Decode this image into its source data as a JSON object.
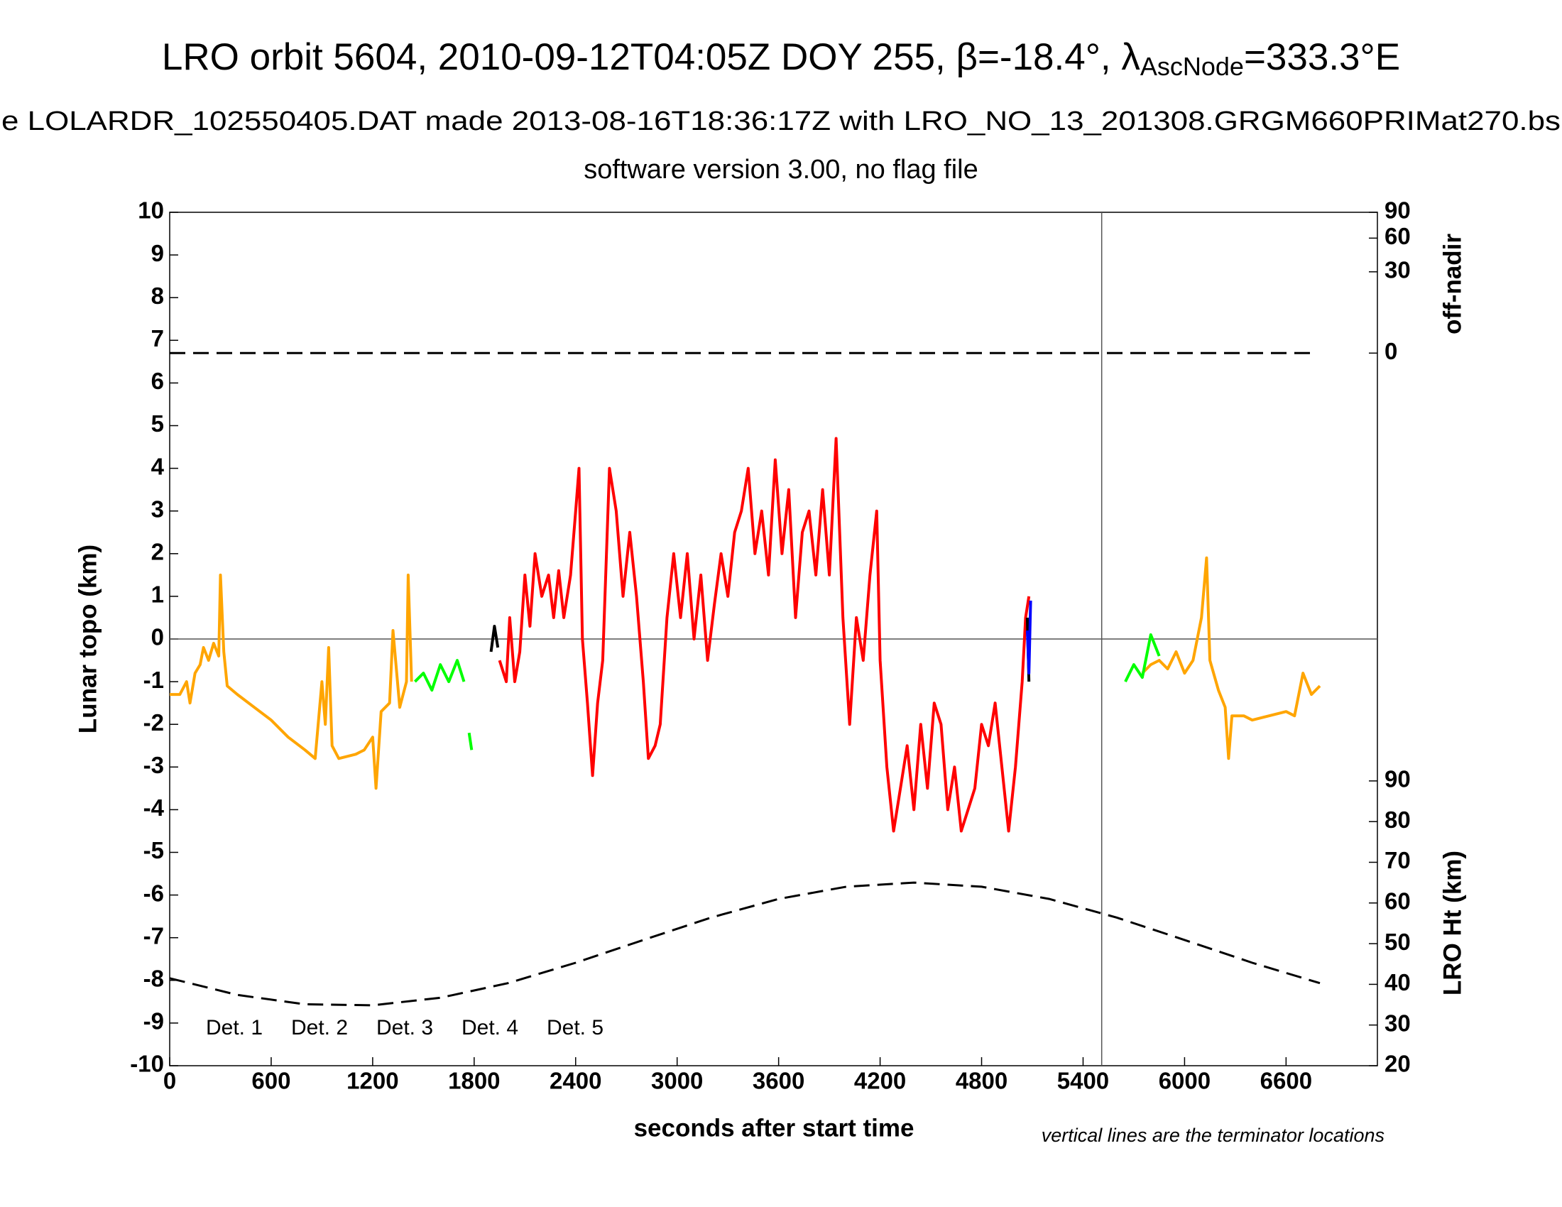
{
  "chart_data": {
    "type": "line",
    "title_parts": [
      "LRO orbit 5604, 2010-09-12T04:05Z DOY 255, β=-18.4°, λ",
      "AscNode",
      "=333.3°E"
    ],
    "subtitle": "e LOLARDR_102550405.DAT made 2013-08-16T18:36:17Z with LRO_NO_13_201308.GRGM660PRIMat270.bs",
    "subtitle2": "software version 3.00, no flag file",
    "xlabel": "seconds after start time",
    "ylabel": "Lunar topo (km)",
    "y2label": "LRO Ht (km)",
    "y3label": "off-nadir",
    "note": "vertical lines are the terminator locations",
    "xlim": [
      0,
      7140
    ],
    "xticks": [
      0,
      600,
      1200,
      1800,
      2400,
      3000,
      3600,
      4200,
      4800,
      5400,
      6000,
      6600
    ],
    "ylim": [
      -10,
      10
    ],
    "yticks": [
      -10,
      -9,
      -8,
      -7,
      -6,
      -5,
      -4,
      -3,
      -2,
      -1,
      0,
      1,
      2,
      3,
      4,
      5,
      6,
      7,
      8,
      9,
      10
    ],
    "y2lim": [
      20,
      90
    ],
    "y2ticks": [
      20,
      30,
      40,
      50,
      60,
      70,
      80,
      90
    ],
    "y3lim": [
      0,
      90
    ],
    "y3ticks": [
      0,
      30,
      60,
      90
    ],
    "y3scale": "sqrt",
    "terminators": [
      5510
    ],
    "series": [
      {
        "name": "Det. 1",
        "color": "#000000",
        "x": [
          1900,
          1920,
          1940,
          1960,
          5070,
          5080
        ],
        "values": [
          -0.3,
          0.3,
          -0.2,
          null,
          0.5,
          -1.0
        ]
      },
      {
        "name": "Det. 2",
        "color": "#0000ff",
        "x": [
          5070,
          5080,
          5090
        ],
        "values": [
          0.2,
          -0.8,
          0.9
        ]
      },
      {
        "name": "Det. 3",
        "color": "#00ff00",
        "x": [
          1450,
          1500,
          1550,
          1600,
          1650,
          1700,
          1740,
          1760,
          1770,
          1785,
          1800,
          5650,
          5700,
          5750,
          5800,
          5850
        ],
        "values": [
          -1.0,
          -0.8,
          -1.2,
          -0.6,
          -1.0,
          -0.5,
          -1.0,
          null,
          -2.2,
          -2.6,
          null,
          -1.0,
          -0.6,
          -0.9,
          0.1,
          -0.4
        ]
      },
      {
        "name": "Det. 4",
        "color": "#ffa500",
        "x": [
          0,
          60,
          100,
          120,
          150,
          180,
          200,
          230,
          260,
          290,
          300,
          320,
          340,
          400,
          500,
          600,
          700,
          800,
          860,
          900,
          920,
          940,
          960,
          1000,
          1100,
          1150,
          1200,
          1220,
          1250,
          1300,
          1320,
          1360,
          1400,
          1410,
          1430,
          1440,
          5750,
          5800,
          5850,
          5900,
          5950,
          6000,
          6050,
          6100,
          6130,
          6150,
          6200,
          6240,
          6260,
          6280,
          6350,
          6400,
          6500,
          6600,
          6650,
          6700,
          6750,
          6800
        ],
        "values": [
          -1.3,
          -1.3,
          -1.0,
          -1.5,
          -0.8,
          -0.6,
          -0.2,
          -0.5,
          -0.1,
          -0.4,
          1.5,
          -0.3,
          -1.1,
          -1.3,
          -1.6,
          -1.9,
          -2.3,
          -2.6,
          -2.8,
          -1.0,
          -2.0,
          -0.2,
          -2.5,
          -2.8,
          -2.7,
          -2.6,
          -2.3,
          -3.5,
          -1.7,
          -1.5,
          0.2,
          -1.6,
          -1.0,
          1.5,
          -1.0,
          null,
          -0.8,
          -0.6,
          -0.5,
          -0.7,
          -0.3,
          -0.8,
          -0.5,
          0.5,
          1.9,
          -0.5,
          -1.2,
          -1.6,
          -2.8,
          -1.8,
          -1.8,
          -1.9,
          -1.8,
          -1.7,
          -1.8,
          -0.8,
          -1.3,
          -1.1
        ]
      },
      {
        "name": "Det. 5",
        "color": "#ff0000",
        "x": [
          1950,
          1990,
          2010,
          2040,
          2070,
          2100,
          2130,
          2160,
          2200,
          2240,
          2270,
          2300,
          2330,
          2370,
          2400,
          2420,
          2440,
          2470,
          2500,
          2530,
          2560,
          2600,
          2640,
          2680,
          2720,
          2760,
          2800,
          2830,
          2870,
          2900,
          2940,
          2980,
          3020,
          3060,
          3100,
          3140,
          3180,
          3220,
          3260,
          3300,
          3340,
          3380,
          3420,
          3460,
          3500,
          3540,
          3580,
          3620,
          3660,
          3700,
          3740,
          3780,
          3820,
          3860,
          3900,
          3940,
          3980,
          4020,
          4060,
          4100,
          4140,
          4180,
          4200,
          4240,
          4280,
          4320,
          4360,
          4400,
          4440,
          4480,
          4520,
          4560,
          4600,
          4640,
          4680,
          4720,
          4760,
          4800,
          4840,
          4880,
          4920,
          4960,
          5000,
          5040,
          5060,
          5080
        ],
        "values": [
          -0.5,
          -1.0,
          0.5,
          -1.0,
          -0.3,
          1.5,
          0.3,
          2.0,
          1.0,
          1.5,
          0.5,
          1.6,
          0.5,
          1.5,
          3.0,
          4.0,
          0.0,
          -1.5,
          -3.2,
          -1.5,
          -0.5,
          4.0,
          3.0,
          1.0,
          2.5,
          1.0,
          -1.0,
          -2.8,
          -2.5,
          -2.0,
          0.5,
          2.0,
          0.5,
          2.0,
          0.0,
          1.5,
          -0.5,
          0.8,
          2.0,
          1.0,
          2.5,
          3.0,
          4.0,
          2.0,
          3.0,
          1.5,
          4.2,
          2.0,
          3.5,
          0.5,
          2.5,
          3.0,
          1.5,
          3.5,
          1.5,
          4.7,
          0.5,
          -2.0,
          0.5,
          -0.5,
          1.5,
          3.0,
          -0.5,
          -3.0,
          -4.5,
          -3.5,
          -2.5,
          -4.0,
          -2.0,
          -3.5,
          -1.5,
          -2.0,
          -4.0,
          -3.0,
          -4.5,
          -4.0,
          -3.5,
          -2.0,
          -2.5,
          -1.5,
          -3.0,
          -4.5,
          -3.0,
          -1.0,
          0.5,
          1.0
        ]
      }
    ],
    "spacecraft_height": {
      "axis": "y2",
      "color": "#000000",
      "x": [
        0,
        400,
        800,
        1200,
        1600,
        2000,
        2400,
        2800,
        3200,
        3600,
        4000,
        4400,
        4800,
        5200,
        5600,
        6000,
        6400,
        6800
      ],
      "values": [
        41.5,
        37.4,
        35.1,
        34.85,
        36.7,
        40.3,
        45.3,
        50.9,
        56.4,
        61.0,
        64.0,
        65.0,
        64.0,
        61.0,
        56.4,
        50.9,
        45.3,
        40.3
      ]
    },
    "off_nadir": {
      "axis": "y3",
      "color": "#000000",
      "x": [
        0,
        6770
      ],
      "values": [
        0,
        0
      ]
    }
  }
}
